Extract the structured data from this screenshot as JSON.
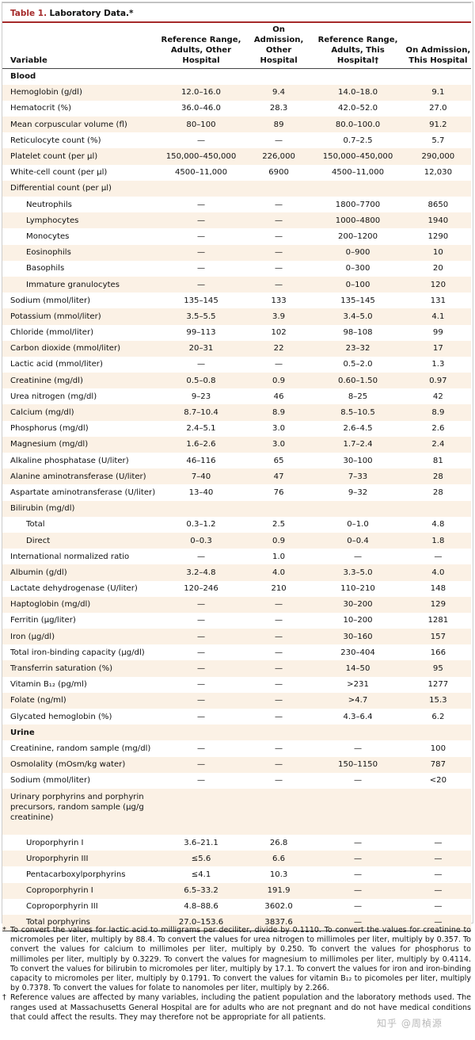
{
  "title": {
    "number": "Table 1.",
    "name": "Laboratory Data.*"
  },
  "headers": [
    "Variable",
    "Reference Range, Adults, Other Hospital",
    "On Admission, Other Hospital",
    "Reference Range, Adults, This Hospital†",
    "On Admission, This Hospital"
  ],
  "rows": [
    {
      "type": "section",
      "label": "Blood"
    },
    {
      "label": "Hemoglobin (g/dl)",
      "values": [
        "12.0–16.0",
        "9.4",
        "14.0–18.0",
        "9.1"
      ]
    },
    {
      "label": "Hematocrit (%)",
      "values": [
        "36.0–46.0",
        "28.3",
        "42.0–52.0",
        "27.0"
      ]
    },
    {
      "label": "Mean corpuscular volume (fl)",
      "values": [
        "80–100",
        "89",
        "80.0–100.0",
        "91.2"
      ]
    },
    {
      "label": "Reticulocyte count (%)",
      "values": [
        "—",
        "—",
        "0.7–2.5",
        "5.7"
      ]
    },
    {
      "label": "Platelet count (per μl)",
      "values": [
        "150,000–450,000",
        "226,000",
        "150,000–450,000",
        "290,000"
      ]
    },
    {
      "label": "White-cell count (per μl)",
      "values": [
        "4500–11,000",
        "6900",
        "4500–11,000",
        "12,030"
      ]
    },
    {
      "label": "Differential count (per μl)",
      "values": [
        "",
        "",
        "",
        ""
      ]
    },
    {
      "label": "Neutrophils",
      "indent": true,
      "values": [
        "—",
        "—",
        "1800–7700",
        "8650"
      ]
    },
    {
      "label": "Lymphocytes",
      "indent": true,
      "values": [
        "—",
        "—",
        "1000–4800",
        "1940"
      ]
    },
    {
      "label": "Monocytes",
      "indent": true,
      "values": [
        "—",
        "—",
        "200–1200",
        "1290"
      ]
    },
    {
      "label": "Eosinophils",
      "indent": true,
      "values": [
        "—",
        "—",
        "0–900",
        "10"
      ]
    },
    {
      "label": "Basophils",
      "indent": true,
      "values": [
        "—",
        "—",
        "0–300",
        "20"
      ]
    },
    {
      "label": "Immature granulocytes",
      "indent": true,
      "values": [
        "—",
        "—",
        "0–100",
        "120"
      ]
    },
    {
      "label": "Sodium (mmol/liter)",
      "values": [
        "135–145",
        "133",
        "135–145",
        "131"
      ]
    },
    {
      "label": "Potassium (mmol/liter)",
      "values": [
        "3.5–5.5",
        "3.9",
        "3.4–5.0",
        "4.1"
      ]
    },
    {
      "label": "Chloride (mmol/liter)",
      "values": [
        "99–113",
        "102",
        "98–108",
        "99"
      ]
    },
    {
      "label": "Carbon dioxide (mmol/liter)",
      "values": [
        "20–31",
        "22",
        "23–32",
        "17"
      ]
    },
    {
      "label": "Lactic acid (mmol/liter)",
      "values": [
        "—",
        "—",
        "0.5–2.0",
        "1.3"
      ]
    },
    {
      "label": "Creatinine (mg/dl)",
      "values": [
        "0.5–0.8",
        "0.9",
        "0.60–1.50",
        "0.97"
      ]
    },
    {
      "label": "Urea nitrogen (mg/dl)",
      "values": [
        "9–23",
        "46",
        "8–25",
        "42"
      ]
    },
    {
      "label": "Calcium (mg/dl)",
      "values": [
        "8.7–10.4",
        "8.9",
        "8.5–10.5",
        "8.9"
      ]
    },
    {
      "label": "Phosphorus (mg/dl)",
      "values": [
        "2.4–5.1",
        "3.0",
        "2.6–4.5",
        "2.6"
      ]
    },
    {
      "label": "Magnesium (mg/dl)",
      "values": [
        "1.6–2.6",
        "3.0",
        "1.7–2.4",
        "2.4"
      ]
    },
    {
      "label": "Alkaline phosphatase (U/liter)",
      "values": [
        "46–116",
        "65",
        "30–100",
        "81"
      ]
    },
    {
      "label": "Alanine aminotransferase (U/liter)",
      "values": [
        "7–40",
        "47",
        "7–33",
        "28"
      ]
    },
    {
      "label": "Aspartate aminotransferase (U/liter)",
      "values": [
        "13–40",
        "76",
        "9–32",
        "28"
      ]
    },
    {
      "label": "Bilirubin (mg/dl)",
      "values": [
        "",
        "",
        "",
        ""
      ]
    },
    {
      "label": "Total",
      "indent": true,
      "values": [
        "0.3–1.2",
        "2.5",
        "0–1.0",
        "4.8"
      ]
    },
    {
      "label": "Direct",
      "indent": true,
      "values": [
        "0–0.3",
        "0.9",
        "0–0.4",
        "1.8"
      ]
    },
    {
      "label": "International normalized ratio",
      "values": [
        "—",
        "1.0",
        "—",
        "—"
      ]
    },
    {
      "label": "Albumin (g/dl)",
      "values": [
        "3.2–4.8",
        "4.0",
        "3.3–5.0",
        "4.0"
      ]
    },
    {
      "label": "Lactate dehydrogenase (U/liter)",
      "values": [
        "120–246",
        "210",
        "110–210",
        "148"
      ]
    },
    {
      "label": "Haptoglobin (mg/dl)",
      "values": [
        "—",
        "—",
        "30–200",
        "129"
      ]
    },
    {
      "label": "Ferritin (μg/liter)",
      "values": [
        "—",
        "—",
        "10–200",
        "1281"
      ]
    },
    {
      "label": "Iron (μg/dl)",
      "values": [
        "—",
        "—",
        "30–160",
        "157"
      ]
    },
    {
      "label": "Total iron-binding capacity (μg/dl)",
      "values": [
        "—",
        "—",
        "230–404",
        "166"
      ]
    },
    {
      "label": "Transferrin saturation (%)",
      "values": [
        "—",
        "—",
        "14–50",
        "95"
      ]
    },
    {
      "label": "Vitamin B₁₂ (pg/ml)",
      "values": [
        "—",
        "—",
        ">231",
        "1277"
      ]
    },
    {
      "label": "Folate (ng/ml)",
      "values": [
        "—",
        "—",
        ">4.7",
        "15.3"
      ]
    },
    {
      "label": "Glycated hemoglobin (%)",
      "values": [
        "—",
        "—",
        "4.3–6.4",
        "6.2"
      ]
    },
    {
      "type": "section",
      "label": "Urine"
    },
    {
      "label": "Creatinine, random sample (mg/dl)",
      "values": [
        "—",
        "—",
        "—",
        "100"
      ]
    },
    {
      "label": "Osmolality (mOsm/kg water)",
      "values": [
        "—",
        "—",
        "150–1150",
        "787"
      ]
    },
    {
      "label": "Sodium (mmol/liter)",
      "values": [
        "—",
        "—",
        "—",
        "<20"
      ]
    },
    {
      "label": "Urinary porphyrins and porphyrin precursors, random sample (μg/g creatinine)",
      "tall": true,
      "values": [
        "",
        "",
        "",
        ""
      ]
    },
    {
      "label": "Uroporphyrin I",
      "indent": true,
      "values": [
        "3.6–21.1",
        "26.8",
        "—",
        "—"
      ]
    },
    {
      "label": "Uroporphyrin III",
      "indent": true,
      "values": [
        "≤5.6",
        "6.6",
        "—",
        "—"
      ]
    },
    {
      "label": "Pentacarboxylporphyrins",
      "indent": true,
      "values": [
        "≤4.1",
        "10.3",
        "—",
        "—"
      ]
    },
    {
      "label": "Coproporphyrin I",
      "indent": true,
      "values": [
        "6.5–33.2",
        "191.9",
        "—",
        "—"
      ]
    },
    {
      "label": "Coproporphyrin III",
      "indent": true,
      "values": [
        "4.8–88.6",
        "3602.0",
        "—",
        "—"
      ]
    },
    {
      "label": "Total porphyrins",
      "indent": true,
      "values": [
        "27.0–153.6",
        "3837.6",
        "—",
        "—"
      ]
    }
  ],
  "footnotes": [
    {
      "mark": "*",
      "text": "To convert the values for lactic acid to milligrams per deciliter, divide by 0.1110. To convert the values for creatinine to micromoles per liter, multiply by 88.4. To convert the values for urea nitrogen to millimoles per liter, multiply by 0.357. To convert the values for calcium to millimoles per liter, multiply by 0.250. To convert the values for phosphorus to millimoles per liter, multiply by 0.3229. To convert the values for magnesium to millimoles per liter, multiply by 0.4114. To convert the values for bilirubin to micromoles per liter, multiply by 17.1. To convert the values for iron and iron-binding capacity to micromoles per liter, multiply by 0.1791. To convert the values for vitamin B₁₂ to picomoles per liter, multiply by 0.7378. To convert the values for folate to nanomoles per liter, multiply by 2.266."
    },
    {
      "mark": "†",
      "text": "Reference values are affected by many variables, including the patient population and the laboratory methods used. The ranges used at Massachusetts General Hospital are for adults who are not pregnant and do not have medical conditions that could affect the results. They may therefore not be appropriate for all patients."
    }
  ],
  "watermark": "知乎 @周楨源"
}
